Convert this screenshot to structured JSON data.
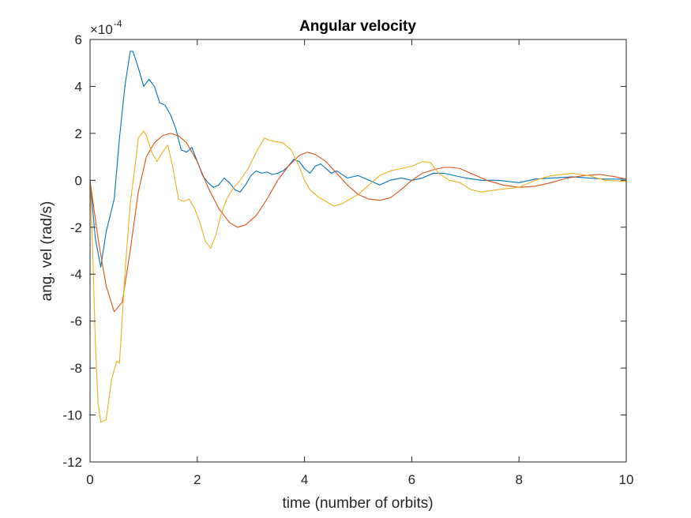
{
  "chart_data": {
    "type": "line",
    "title": "Angular velocity",
    "xlabel": "time (number of orbits)",
    "ylabel": "ang. vel (rad/s)",
    "exponent_base": "×10",
    "exponent_power": "-4",
    "xlim": [
      0,
      10
    ],
    "ylim": [
      -12,
      6
    ],
    "xticks": [
      "0",
      "2",
      "4",
      "6",
      "8",
      "10"
    ],
    "yticks": [
      "-12",
      "-10",
      "-8",
      "-6",
      "-4",
      "-2",
      "0",
      "2",
      "4",
      "6"
    ],
    "grid": false,
    "series": [
      {
        "color": "#0072BD",
        "x": [
          0,
          0.1,
          0.2,
          0.3,
          0.45,
          0.55,
          0.65,
          0.75,
          0.8,
          0.9,
          1.0,
          1.1,
          1.2,
          1.3,
          1.4,
          1.5,
          1.6,
          1.7,
          1.8,
          1.9,
          2.0,
          2.1,
          2.2,
          2.3,
          2.4,
          2.5,
          2.6,
          2.7,
          2.8,
          2.9,
          3.0,
          3.1,
          3.2,
          3.3,
          3.4,
          3.5,
          3.6,
          3.7,
          3.8,
          3.9,
          4.0,
          4.1,
          4.2,
          4.3,
          4.4,
          4.5,
          4.6,
          4.8,
          5.0,
          5.2,
          5.4,
          5.6,
          5.8,
          6.0,
          6.2,
          6.4,
          6.6,
          6.8,
          7.0,
          7.3,
          7.6,
          8.0,
          8.3,
          8.6,
          9.0,
          9.3,
          9.6,
          10.0
        ],
        "y": [
          0,
          -2.5,
          -3.7,
          -2.2,
          -0.8,
          1.8,
          4.0,
          5.5,
          5.5,
          4.8,
          4.0,
          4.3,
          4.0,
          3.3,
          3.2,
          2.8,
          2.2,
          1.3,
          1.2,
          1.4,
          0.8,
          0.2,
          -0.1,
          -0.3,
          -0.2,
          0.1,
          -0.1,
          -0.4,
          -0.5,
          -0.2,
          0.2,
          0.4,
          0.3,
          0.35,
          0.25,
          0.3,
          0.4,
          0.6,
          0.9,
          0.8,
          0.5,
          0.3,
          0.6,
          0.7,
          0.5,
          0.3,
          0.4,
          0.1,
          0.2,
          0.0,
          -0.2,
          0.0,
          0.1,
          0.0,
          0.1,
          0.3,
          0.3,
          0.2,
          0.1,
          0.0,
          0.0,
          -0.1,
          0.05,
          0.1,
          0.15,
          0.1,
          0.05,
          0.05
        ]
      },
      {
        "color": "#D95319",
        "x": [
          0,
          0.15,
          0.3,
          0.45,
          0.6,
          0.75,
          0.9,
          1.05,
          1.2,
          1.35,
          1.5,
          1.65,
          1.8,
          2.0,
          2.2,
          2.4,
          2.6,
          2.75,
          2.9,
          3.1,
          3.3,
          3.5,
          3.7,
          3.9,
          4.05,
          4.2,
          4.4,
          4.6,
          4.8,
          5.0,
          5.2,
          5.4,
          5.6,
          5.8,
          6.0,
          6.2,
          6.4,
          6.6,
          6.75,
          6.9,
          7.1,
          7.4,
          7.7,
          8.0,
          8.3,
          8.6,
          8.9,
          9.2,
          9.5,
          9.8,
          10.0
        ],
        "y": [
          0,
          -2.5,
          -4.5,
          -5.6,
          -5.2,
          -3.0,
          -0.5,
          1.0,
          1.6,
          1.9,
          2.0,
          1.9,
          1.6,
          0.8,
          -0.3,
          -1.2,
          -1.8,
          -2.0,
          -1.9,
          -1.5,
          -0.8,
          0.0,
          0.6,
          1.05,
          1.2,
          1.1,
          0.8,
          0.3,
          -0.2,
          -0.6,
          -0.8,
          -0.85,
          -0.75,
          -0.4,
          0.0,
          0.3,
          0.45,
          0.55,
          0.55,
          0.5,
          0.3,
          0.0,
          -0.2,
          -0.3,
          -0.25,
          -0.1,
          0.1,
          0.2,
          0.25,
          0.15,
          0.05
        ]
      },
      {
        "color": "#EDB120",
        "x": [
          0,
          0.05,
          0.1,
          0.15,
          0.2,
          0.3,
          0.4,
          0.5,
          0.55,
          0.65,
          0.75,
          0.85,
          0.9,
          1.0,
          1.05,
          1.15,
          1.25,
          1.35,
          1.45,
          1.55,
          1.65,
          1.75,
          1.85,
          1.95,
          2.05,
          2.15,
          2.25,
          2.35,
          2.45,
          2.55,
          2.65,
          2.8,
          2.95,
          3.1,
          3.25,
          3.35,
          3.45,
          3.6,
          3.75,
          3.9,
          4.0,
          4.1,
          4.25,
          4.4,
          4.55,
          4.7,
          4.85,
          5.0,
          5.2,
          5.4,
          5.6,
          5.8,
          6.0,
          6.2,
          6.35,
          6.5,
          6.7,
          6.9,
          7.1,
          7.3,
          7.6,
          8.0,
          8.3,
          8.6,
          9.0,
          9.3,
          9.6,
          10.0
        ],
        "y": [
          0,
          -3.0,
          -7.0,
          -9.5,
          -10.3,
          -10.2,
          -8.5,
          -7.7,
          -7.8,
          -4.0,
          -1.0,
          0.8,
          1.8,
          2.1,
          1.9,
          1.2,
          0.8,
          1.2,
          1.5,
          0.5,
          -0.8,
          -0.9,
          -0.8,
          -1.2,
          -1.8,
          -2.6,
          -2.9,
          -2.3,
          -1.4,
          -0.8,
          -0.4,
          0.0,
          0.5,
          1.2,
          1.8,
          1.7,
          1.65,
          1.6,
          1.3,
          0.6,
          0.0,
          -0.4,
          -0.7,
          -0.9,
          -1.1,
          -1.0,
          -0.8,
          -0.6,
          -0.2,
          0.2,
          0.4,
          0.5,
          0.6,
          0.8,
          0.75,
          0.3,
          0.0,
          -0.1,
          -0.4,
          -0.5,
          -0.4,
          -0.3,
          0.0,
          0.2,
          0.3,
          0.2,
          0.0,
          -0.05
        ]
      }
    ]
  }
}
